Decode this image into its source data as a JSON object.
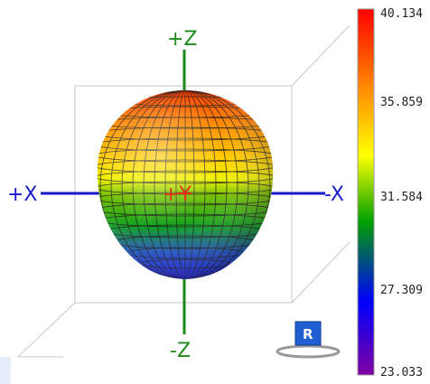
{
  "axes": {
    "plus_z": "+Z",
    "minus_z": "-Z",
    "plus_x": "+X",
    "minus_x": "-X",
    "plus_y": "+Y"
  },
  "colorbar": {
    "ticks": [
      "40.134",
      "35.859",
      "31.584",
      "27.309",
      "23.033"
    ],
    "colors": [
      "#ff0000",
      "#ff8000",
      "#ffff00",
      "#00a000",
      "#0000ff",
      "#8000a0"
    ]
  },
  "colors": {
    "z_axis": "#1b8a1b",
    "x_axis": "#1a1acc",
    "y_axis": "#e0301e",
    "r_button": "#1f5fd1"
  },
  "reset_view": {
    "label": "R"
  }
}
